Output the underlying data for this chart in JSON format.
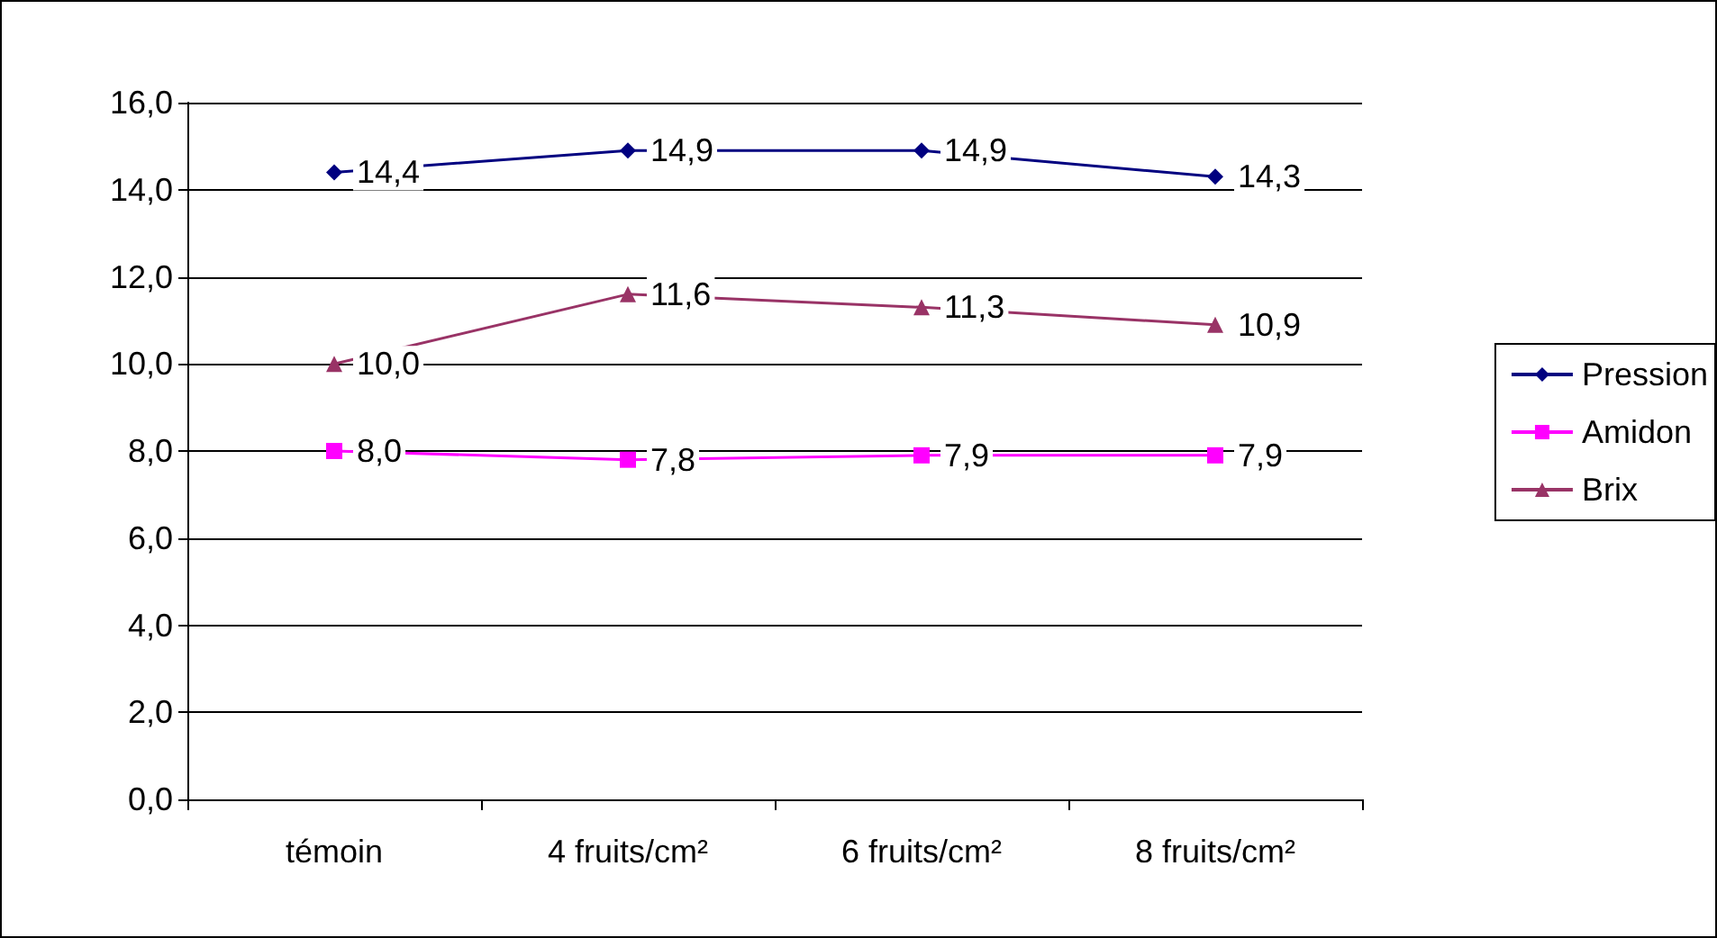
{
  "chart_data": {
    "type": "line",
    "categories": [
      "témoin",
      "4 fruits/cm²",
      "6 fruits/cm²",
      "8 fruits/cm²"
    ],
    "series": [
      {
        "name": "Pression",
        "color": "#000080",
        "marker": "diamond",
        "values": [
          14.4,
          14.9,
          14.9,
          14.3
        ],
        "value_labels": [
          "14,4",
          "14,9",
          "14,9",
          "14,3"
        ]
      },
      {
        "name": "Amidon",
        "color": "#ff00ff",
        "marker": "square",
        "values": [
          8.0,
          7.8,
          7.9,
          7.9
        ],
        "value_labels": [
          "8,0",
          "7,8",
          "7,9",
          "7,9"
        ]
      },
      {
        "name": "Brix",
        "color": "#993366",
        "marker": "triangle",
        "values": [
          10.0,
          11.6,
          11.3,
          10.9
        ],
        "value_labels": [
          "10,0",
          "11,6",
          "11,3",
          "10,9"
        ]
      }
    ],
    "ylim": [
      0,
      16
    ],
    "yticks": [
      {
        "value": 0,
        "label": "0,0"
      },
      {
        "value": 2,
        "label": "2,0"
      },
      {
        "value": 4,
        "label": "4,0"
      },
      {
        "value": 6,
        "label": "6,0"
      },
      {
        "value": 8,
        "label": "8,0"
      },
      {
        "value": 10,
        "label": "10,0"
      },
      {
        "value": 12,
        "label": "12,0"
      },
      {
        "value": 14,
        "label": "14,0"
      },
      {
        "value": 16,
        "label": "16,0"
      }
    ],
    "grid": "y",
    "legend": "right",
    "line_style": "solid"
  }
}
